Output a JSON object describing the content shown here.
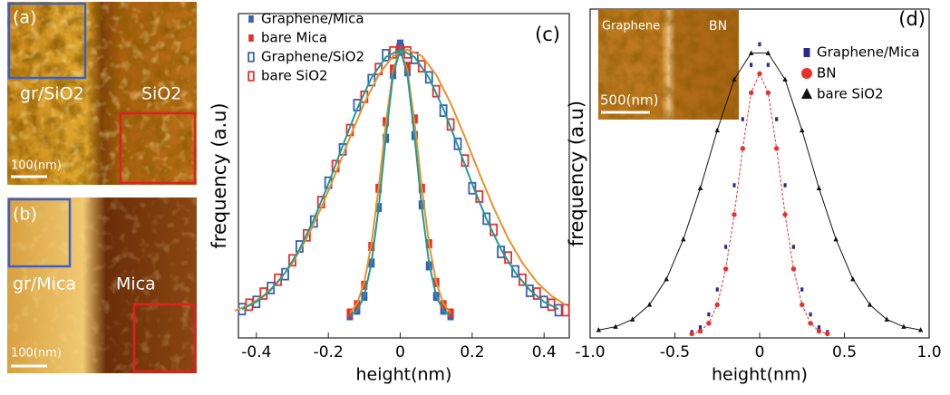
{
  "panels": {
    "a": {
      "label": "(a)",
      "left": "gr/SiO2",
      "right": "SiO2",
      "scale": "100(nm)"
    },
    "b": {
      "label": "(b)",
      "left": "gr/Mica",
      "right": "Mica",
      "scale": "100(nm)"
    }
  },
  "chart_data": [
    {
      "type": "scatter",
      "panel_label": "(c)",
      "xlabel": "height(nm)",
      "ylabel": "frequency (a.u)",
      "xlim": [
        -0.45,
        0.47
      ],
      "ylim": [
        -0.04,
        1.13
      ],
      "xticks": [
        -0.4,
        -0.2,
        0,
        0.2,
        0.4
      ],
      "legend": "upper left",
      "series": [
        {
          "name": "Graphene/Mica",
          "color": "#3a5fb0",
          "marker": "square",
          "x": [
            -0.14,
            -0.12,
            -0.1,
            -0.08,
            -0.06,
            -0.04,
            -0.02,
            0,
            0.02,
            0.04,
            0.06,
            0.08,
            0.1,
            0.12,
            0.14
          ],
          "values": [
            0.04,
            0.06,
            0.11,
            0.23,
            0.43,
            0.68,
            0.91,
            1.02,
            0.92,
            0.69,
            0.44,
            0.22,
            0.11,
            0.06,
            0.04
          ]
        },
        {
          "name": "bare Mica",
          "color": "#e8302a",
          "marker": "square",
          "x": [
            -0.14,
            -0.12,
            -0.1,
            -0.08,
            -0.06,
            -0.04,
            -0.02,
            0,
            0.02,
            0.04,
            0.06,
            0.08,
            0.1,
            0.12,
            0.14
          ],
          "values": [
            0.05,
            0.08,
            0.15,
            0.29,
            0.5,
            0.74,
            0.93,
            1.0,
            0.94,
            0.75,
            0.5,
            0.3,
            0.16,
            0.08,
            0.05
          ]
        },
        {
          "name": "Graphene/SiO2",
          "color": "#3a5fb0",
          "marker": "square-open",
          "x": [
            -0.44,
            -0.4,
            -0.36,
            -0.32,
            -0.28,
            -0.24,
            -0.2,
            -0.16,
            -0.12,
            -0.08,
            -0.04,
            0,
            0.04,
            0.08,
            0.12,
            0.16,
            0.2,
            0.24,
            0.28,
            0.32,
            0.36,
            0.4,
            0.44
          ],
          "values": [
            0.064,
            0.09,
            0.14,
            0.19,
            0.29,
            0.38,
            0.52,
            0.64,
            0.8,
            0.89,
            0.98,
            1.0,
            0.97,
            0.9,
            0.78,
            0.66,
            0.5,
            0.39,
            0.27,
            0.2,
            0.13,
            0.09,
            0.06
          ]
        },
        {
          "name": "bare SiO2",
          "color": "#e8302a",
          "marker": "square-open",
          "x": [
            -0.42,
            -0.38,
            -0.34,
            -0.3,
            -0.26,
            -0.22,
            -0.18,
            -0.14,
            -0.1,
            -0.06,
            -0.02,
            0.02,
            0.06,
            0.1,
            0.14,
            0.18,
            0.22,
            0.26,
            0.3,
            0.34,
            0.38,
            0.42,
            0.46
          ],
          "values": [
            0.08,
            0.12,
            0.17,
            0.24,
            0.33,
            0.45,
            0.58,
            0.71,
            0.83,
            0.93,
            0.99,
            0.99,
            0.94,
            0.85,
            0.73,
            0.6,
            0.47,
            0.35,
            0.25,
            0.17,
            0.12,
            0.08,
            0.06
          ]
        }
      ],
      "fits": [
        {
          "color": "#e8922a",
          "x": [
            -0.46,
            -0.42,
            -0.38,
            -0.34,
            -0.3,
            -0.26,
            -0.22,
            -0.18,
            -0.14,
            -0.1,
            -0.06,
            -0.02,
            0.02,
            0.06,
            0.1,
            0.14,
            0.18,
            0.22,
            0.26,
            0.3,
            0.34,
            0.38,
            0.42,
            0.46
          ],
          "values": [
            0.058,
            0.079,
            0.112,
            0.161,
            0.23,
            0.319,
            0.429,
            0.553,
            0.684,
            0.807,
            0.909,
            0.977,
            1.0,
            0.977,
            0.909,
            0.807,
            0.684,
            0.553,
            0.429,
            0.319,
            0.23,
            0.161,
            0.112,
            0.079
          ]
        },
        {
          "color": "#1f9a9a",
          "x": [
            -0.44,
            -0.4,
            -0.36,
            -0.32,
            -0.28,
            -0.24,
            -0.2,
            -0.16,
            -0.12,
            -0.08,
            -0.04,
            0,
            0.04,
            0.08,
            0.12,
            0.16,
            0.2,
            0.24,
            0.28,
            0.32,
            0.36,
            0.4,
            0.44
          ],
          "values": [
            0.064,
            0.09,
            0.133,
            0.195,
            0.28,
            0.388,
            0.515,
            0.653,
            0.786,
            0.898,
            0.973,
            1.0,
            0.973,
            0.898,
            0.786,
            0.653,
            0.515,
            0.388,
            0.28,
            0.195,
            0.133,
            0.09,
            0.064
          ]
        },
        {
          "color": "#e8922a",
          "x": [
            -0.14,
            -0.12,
            -0.1,
            -0.08,
            -0.06,
            -0.04,
            -0.02,
            0,
            0.02,
            0.04,
            0.06,
            0.08,
            0.1,
            0.12,
            0.14
          ],
          "values": [
            0.049,
            0.084,
            0.161,
            0.3,
            0.502,
            0.734,
            0.925,
            1.0,
            0.925,
            0.734,
            0.502,
            0.3,
            0.161,
            0.084,
            0.049
          ]
        },
        {
          "color": "#1f9a9a",
          "x": [
            -0.14,
            -0.12,
            -0.1,
            -0.08,
            -0.06,
            -0.04,
            -0.02,
            0,
            0.02,
            0.04,
            0.06,
            0.08,
            0.1,
            0.12,
            0.14
          ],
          "values": [
            0.04,
            0.057,
            0.112,
            0.23,
            0.43,
            0.684,
            0.909,
            1.0,
            0.909,
            0.684,
            0.43,
            0.23,
            0.112,
            0.057,
            0.04
          ]
        }
      ]
    },
    {
      "type": "scatter",
      "panel_label": "(d)",
      "xlabel": "height(nm)",
      "xlim": [
        -1,
        1
      ],
      "ylim": [
        0,
        1.12
      ],
      "xticks": [
        {
          "value": -1,
          "label": "-1.0"
        },
        -0.5,
        0,
        0.5,
        {
          "value": 1,
          "label": "1.0"
        }
      ],
      "legend": "upper right",
      "inset": {
        "left": "Graphene",
        "right": "BN",
        "scale": "500(nm)"
      },
      "series": [
        {
          "name": "Graphene/Mica",
          "color": "#2a2a8c",
          "marker": "square",
          "x": [
            -0.4,
            -0.35,
            -0.3,
            -0.25,
            -0.2,
            -0.15,
            -0.1,
            -0.05,
            0,
            0.05,
            0.1,
            0.15,
            0.2,
            0.25,
            0.3,
            0.35,
            0.4
          ],
          "values": [
            0.02,
            0.036,
            0.08,
            0.165,
            0.31,
            0.52,
            0.745,
            0.93,
            1.0,
            0.93,
            0.745,
            0.52,
            0.31,
            0.165,
            0.08,
            0.036,
            0.02
          ]
        },
        {
          "name": "BN",
          "color": "#e8302a",
          "marker": "circle",
          "x": [
            -0.4,
            -0.35,
            -0.3,
            -0.25,
            -0.2,
            -0.15,
            -0.1,
            -0.05,
            0,
            0.05,
            0.1,
            0.15,
            0.2,
            0.25,
            0.3,
            0.35,
            0.4
          ],
          "values": [
            0.014,
            0.023,
            0.05,
            0.113,
            0.235,
            0.42,
            0.645,
            0.835,
            0.9,
            0.835,
            0.645,
            0.42,
            0.235,
            0.113,
            0.05,
            0.023,
            0.014
          ]
        },
        {
          "name": "bare SiO2",
          "color": "#111111",
          "marker": "triangle",
          "x": [
            -0.95,
            -0.85,
            -0.75,
            -0.65,
            -0.55,
            -0.45,
            -0.35,
            -0.25,
            -0.15,
            -0.05,
            0.05,
            0.15,
            0.25,
            0.35,
            0.45,
            0.55,
            0.65,
            0.75,
            0.85,
            0.95
          ],
          "values": [
            0.027,
            0.038,
            0.063,
            0.113,
            0.2,
            0.336,
            0.51,
            0.707,
            0.88,
            0.97,
            0.97,
            0.88,
            0.707,
            0.51,
            0.336,
            0.2,
            0.113,
            0.063,
            0.038,
            0.027
          ]
        }
      ],
      "fits": [
        {
          "color": "#111111",
          "x": [
            -0.95,
            -0.85,
            -0.75,
            -0.65,
            -0.55,
            -0.45,
            -0.35,
            -0.25,
            -0.15,
            -0.05,
            0.05,
            0.15,
            0.25,
            0.35,
            0.45,
            0.55,
            0.65,
            0.75,
            0.85,
            0.95
          ],
          "values": [
            0.027,
            0.038,
            0.063,
            0.113,
            0.2,
            0.336,
            0.51,
            0.707,
            0.88,
            0.97,
            0.97,
            0.88,
            0.707,
            0.51,
            0.336,
            0.2,
            0.113,
            0.063,
            0.038,
            0.027
          ]
        },
        {
          "color": "#e8302a",
          "dash": true,
          "x": [
            -0.4,
            -0.35,
            -0.3,
            -0.25,
            -0.2,
            -0.15,
            -0.1,
            -0.05,
            0,
            0.05,
            0.1,
            0.15,
            0.2,
            0.25,
            0.3,
            0.35,
            0.4
          ],
          "values": [
            0.014,
            0.023,
            0.05,
            0.113,
            0.235,
            0.42,
            0.645,
            0.835,
            0.9,
            0.835,
            0.645,
            0.42,
            0.235,
            0.113,
            0.05,
            0.023,
            0.014
          ]
        }
      ]
    }
  ]
}
